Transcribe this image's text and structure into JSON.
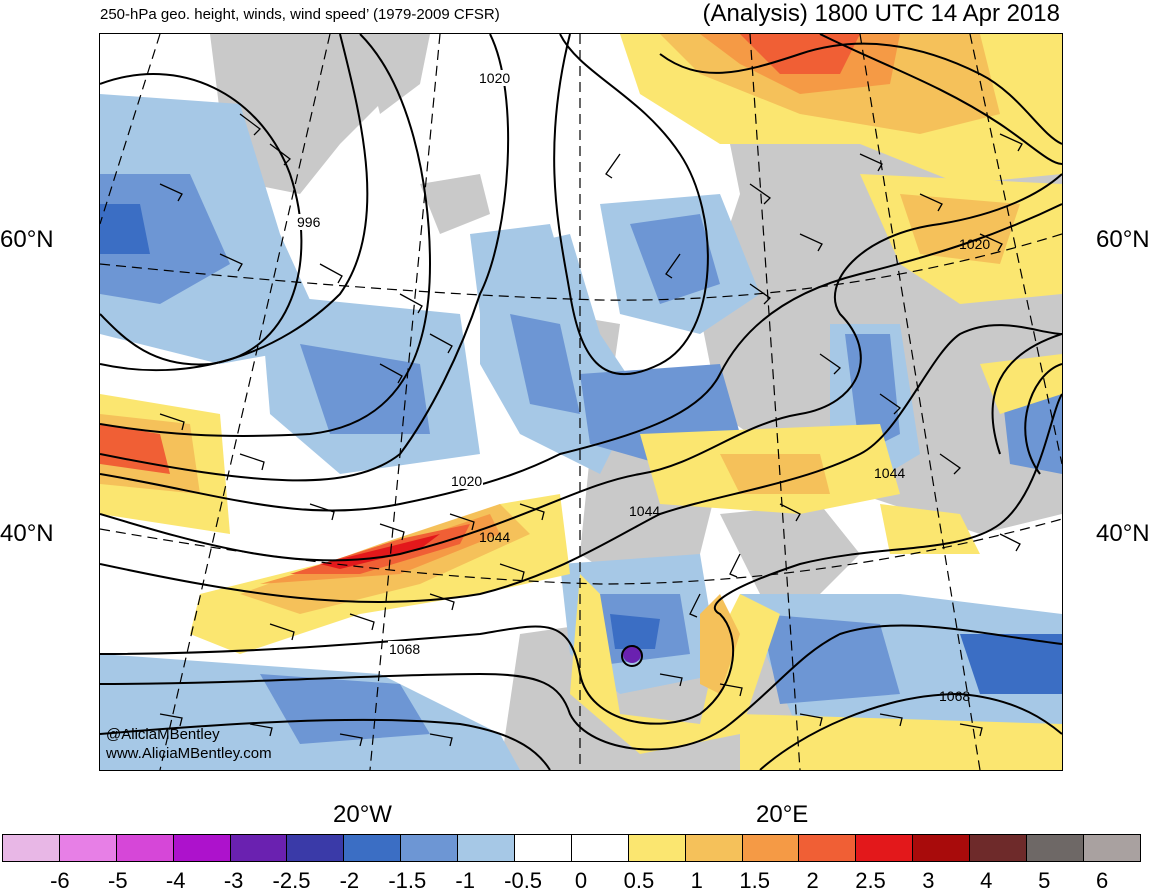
{
  "header": {
    "title_left": "250-hPa geo. height, winds, wind speed’ (1979-2009 CFSR)",
    "title_right": "(Analysis) 1800 UTC 14 Apr 2018"
  },
  "axes": {
    "lat_60": "60°N",
    "lat_40": "40°N",
    "lon_20w": "20°W",
    "lon_20e": "20°E"
  },
  "contours": {
    "c996": "996",
    "c1020a": "1020",
    "c1020b": "1020",
    "c1020c": "1020",
    "c1044a": "1044",
    "c1044b": "1044",
    "c1044c": "1044",
    "c1068a": "1068",
    "c1068b": "1068"
  },
  "credits": {
    "handle": "@AliciaMBentley",
    "site": "www.AliciaMBentley.com"
  },
  "colorbar": {
    "colors": [
      "#e8b7e6",
      "#e77fe6",
      "#d647d8",
      "#ad12cc",
      "#6a21b0",
      "#3a3aa8",
      "#3b6ec4",
      "#6d96d4",
      "#a6c8e6",
      "#ffffff",
      "#ffffff",
      "#fbe670",
      "#f5c15a",
      "#f59a45",
      "#f05f35",
      "#e3181b",
      "#a80b0b",
      "#6e2a2a",
      "#6e6866",
      "#a9a1a0"
    ],
    "labels": [
      "-6",
      "-5",
      "-4",
      "-3",
      "-2.5",
      "-2",
      "-1.5",
      "-1",
      "-0.5",
      "0",
      "0.5",
      "1",
      "1.5",
      "2",
      "2.5",
      "3",
      "4",
      "5",
      "6"
    ]
  }
}
